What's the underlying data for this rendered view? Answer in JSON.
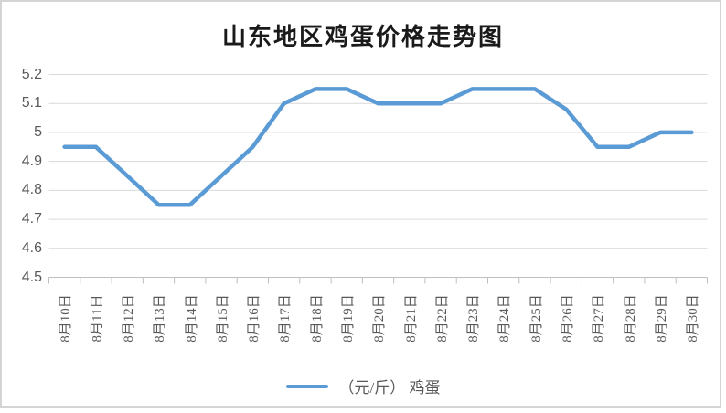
{
  "chart_data": {
    "type": "line",
    "title": "山东地区鸡蛋价格走势图",
    "categories": [
      "8月10日",
      "8月11日",
      "8月12日",
      "8月13日",
      "8月14日",
      "8月15日",
      "8月16日",
      "8月17日",
      "8月18日",
      "8月19日",
      "8月20日",
      "8月21日",
      "8月22日",
      "8月23日",
      "8月24日",
      "8月25日",
      "8月26日",
      "8月27日",
      "8月28日",
      "8月29日",
      "8月30日"
    ],
    "series": [
      {
        "name": "（元/斤） 鸡蛋",
        "color": "#5B9BD5",
        "values": [
          4.95,
          4.95,
          4.85,
          4.75,
          4.75,
          4.85,
          4.95,
          5.1,
          5.15,
          5.15,
          5.1,
          5.1,
          5.1,
          5.15,
          5.15,
          5.15,
          5.08,
          4.95,
          4.95,
          5.0,
          5.0
        ]
      }
    ],
    "ylim": [
      4.5,
      5.2
    ],
    "yticks": [
      "5.2",
      "5.1",
      "5",
      "4.9",
      "4.8",
      "4.7",
      "4.6",
      "4.5"
    ],
    "grid": true,
    "legend_position": "bottom"
  },
  "colors": {
    "line": "#5B9BD5",
    "gridline": "#D9D9D9",
    "axis": "#BFBFBF",
    "label": "#595959",
    "title": "#1A1A1A",
    "border": "#D4D4D4",
    "background": "#FFFFFF"
  }
}
